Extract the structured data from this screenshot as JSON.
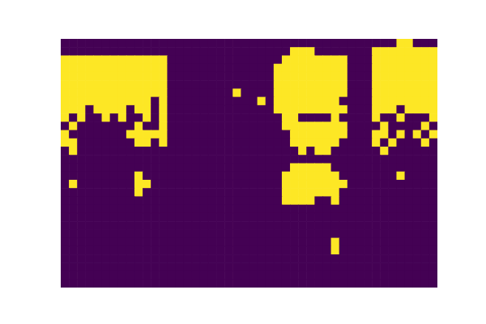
{
  "chart_data": {
    "type": "heatmap",
    "color": "viridis",
    "tick_labels": false,
    "cells": [
      [
        0,
        0,
        0,
        0,
        0,
        0,
        0,
        0,
        0,
        0,
        0,
        0,
        0,
        0,
        0,
        0,
        0,
        0,
        0,
        0,
        0,
        0,
        0,
        0,
        0,
        0,
        0,
        0,
        0,
        0,
        0,
        0,
        0,
        0,
        0,
        0,
        0,
        0,
        0,
        0,
        0,
        1,
        1,
        0,
        0,
        0
      ],
      [
        0,
        0,
        0,
        0,
        0,
        0,
        0,
        0,
        0,
        0,
        0,
        0,
        0,
        0,
        0,
        0,
        0,
        0,
        0,
        0,
        0,
        0,
        0,
        0,
        0,
        0,
        0,
        0,
        1,
        1,
        1,
        0,
        0,
        0,
        0,
        0,
        0,
        0,
        1,
        1,
        1,
        1,
        1,
        1,
        1,
        1
      ],
      [
        1,
        1,
        1,
        1,
        1,
        1,
        1,
        1,
        1,
        1,
        1,
        1,
        1,
        0,
        0,
        0,
        0,
        0,
        0,
        0,
        0,
        0,
        0,
        0,
        0,
        0,
        0,
        1,
        1,
        1,
        1,
        1,
        1,
        1,
        1,
        0,
        0,
        0,
        1,
        1,
        1,
        1,
        1,
        1,
        1,
        1
      ],
      [
        1,
        1,
        1,
        1,
        1,
        1,
        1,
        1,
        1,
        1,
        1,
        1,
        1,
        0,
        0,
        0,
        0,
        0,
        0,
        0,
        0,
        0,
        0,
        0,
        0,
        0,
        1,
        1,
        1,
        1,
        1,
        1,
        1,
        1,
        1,
        0,
        0,
        0,
        1,
        1,
        1,
        1,
        1,
        1,
        1,
        1
      ],
      [
        1,
        1,
        1,
        1,
        1,
        1,
        1,
        1,
        1,
        1,
        1,
        1,
        1,
        0,
        0,
        0,
        0,
        0,
        0,
        0,
        0,
        0,
        0,
        0,
        0,
        0,
        1,
        1,
        1,
        1,
        1,
        1,
        1,
        1,
        1,
        0,
        0,
        0,
        1,
        1,
        1,
        1,
        1,
        1,
        1,
        1
      ],
      [
        1,
        1,
        1,
        1,
        1,
        1,
        1,
        1,
        1,
        1,
        1,
        1,
        1,
        0,
        0,
        0,
        0,
        0,
        0,
        0,
        0,
        0,
        0,
        0,
        0,
        0,
        1,
        1,
        1,
        1,
        1,
        1,
        1,
        1,
        1,
        0,
        0,
        0,
        1,
        1,
        1,
        1,
        1,
        1,
        1,
        1
      ],
      [
        1,
        1,
        1,
        1,
        1,
        1,
        1,
        1,
        1,
        1,
        1,
        1,
        1,
        0,
        0,
        0,
        0,
        0,
        0,
        0,
        0,
        1,
        0,
        0,
        0,
        0,
        1,
        1,
        1,
        1,
        1,
        1,
        1,
        1,
        1,
        0,
        0,
        0,
        1,
        1,
        1,
        1,
        1,
        1,
        1,
        1
      ],
      [
        1,
        1,
        1,
        1,
        1,
        1,
        1,
        1,
        1,
        1,
        1,
        0,
        1,
        0,
        0,
        0,
        0,
        0,
        0,
        0,
        0,
        0,
        0,
        0,
        1,
        0,
        1,
        1,
        1,
        1,
        1,
        1,
        1,
        1,
        0,
        0,
        0,
        0,
        1,
        1,
        1,
        1,
        1,
        1,
        1,
        1
      ],
      [
        1,
        1,
        1,
        0,
        1,
        1,
        1,
        1,
        0,
        1,
        1,
        0,
        1,
        0,
        0,
        0,
        0,
        0,
        0,
        0,
        0,
        0,
        0,
        0,
        0,
        0,
        1,
        1,
        1,
        1,
        1,
        1,
        1,
        1,
        1,
        0,
        0,
        0,
        1,
        1,
        1,
        0,
        1,
        1,
        1,
        1
      ],
      [
        1,
        0,
        1,
        0,
        0,
        1,
        0,
        1,
        0,
        0,
        1,
        0,
        1,
        0,
        0,
        0,
        0,
        0,
        0,
        0,
        0,
        0,
        0,
        0,
        0,
        0,
        0,
        1,
        1,
        0,
        0,
        0,
        0,
        1,
        0,
        0,
        0,
        0,
        1,
        0,
        0,
        1,
        0,
        0,
        0,
        1
      ],
      [
        0,
        1,
        0,
        0,
        0,
        0,
        0,
        0,
        0,
        1,
        0,
        0,
        1,
        0,
        0,
        0,
        0,
        0,
        0,
        0,
        0,
        0,
        0,
        0,
        0,
        0,
        0,
        1,
        1,
        1,
        1,
        1,
        1,
        1,
        1,
        0,
        0,
        0,
        0,
        1,
        0,
        0,
        0,
        0,
        1,
        0
      ],
      [
        1,
        0,
        0,
        0,
        0,
        0,
        0,
        0,
        1,
        1,
        1,
        1,
        1,
        0,
        0,
        0,
        0,
        0,
        0,
        0,
        0,
        0,
        0,
        0,
        0,
        0,
        0,
        0,
        1,
        1,
        1,
        1,
        1,
        1,
        1,
        0,
        0,
        0,
        1,
        1,
        0,
        1,
        0,
        1,
        0,
        1
      ],
      [
        1,
        1,
        0,
        0,
        0,
        0,
        0,
        0,
        0,
        1,
        1,
        0,
        1,
        0,
        0,
        0,
        0,
        0,
        0,
        0,
        0,
        0,
        0,
        0,
        0,
        0,
        0,
        0,
        1,
        1,
        1,
        1,
        1,
        1,
        0,
        0,
        0,
        0,
        1,
        0,
        1,
        0,
        0,
        0,
        1,
        0
      ],
      [
        0,
        1,
        0,
        0,
        0,
        0,
        0,
        0,
        0,
        0,
        0,
        0,
        0,
        0,
        0,
        0,
        0,
        0,
        0,
        0,
        0,
        0,
        0,
        0,
        0,
        0,
        0,
        0,
        0,
        1,
        0,
        1,
        1,
        0,
        0,
        0,
        0,
        0,
        0,
        1,
        0,
        0,
        0,
        0,
        0,
        0
      ],
      [
        0,
        0,
        0,
        0,
        0,
        0,
        0,
        0,
        0,
        0,
        0,
        0,
        0,
        0,
        0,
        0,
        0,
        0,
        0,
        0,
        0,
        0,
        0,
        0,
        0,
        0,
        0,
        0,
        0,
        0,
        0,
        0,
        0,
        0,
        0,
        0,
        0,
        0,
        0,
        0,
        0,
        0,
        0,
        0,
        0,
        0
      ],
      [
        0,
        0,
        0,
        0,
        0,
        0,
        0,
        0,
        0,
        0,
        0,
        0,
        0,
        0,
        0,
        0,
        0,
        0,
        0,
        0,
        0,
        0,
        0,
        0,
        0,
        0,
        0,
        0,
        1,
        1,
        1,
        1,
        1,
        0,
        0,
        0,
        0,
        0,
        0,
        0,
        0,
        0,
        0,
        0,
        0,
        0
      ],
      [
        0,
        0,
        0,
        0,
        0,
        0,
        0,
        0,
        0,
        1,
        0,
        0,
        0,
        0,
        0,
        0,
        0,
        0,
        0,
        0,
        0,
        0,
        0,
        0,
        0,
        0,
        0,
        1,
        1,
        1,
        1,
        1,
        1,
        1,
        0,
        0,
        0,
        0,
        0,
        0,
        0,
        1,
        0,
        0,
        0,
        0
      ],
      [
        0,
        1,
        0,
        0,
        0,
        0,
        0,
        0,
        0,
        1,
        1,
        0,
        0,
        0,
        0,
        0,
        0,
        0,
        0,
        0,
        0,
        0,
        0,
        0,
        0,
        0,
        0,
        1,
        1,
        1,
        1,
        1,
        1,
        1,
        1,
        0,
        0,
        0,
        0,
        0,
        0,
        0,
        0,
        0,
        0,
        0
      ],
      [
        0,
        0,
        0,
        0,
        0,
        0,
        0,
        0,
        0,
        1,
        0,
        0,
        0,
        0,
        0,
        0,
        0,
        0,
        0,
        0,
        0,
        0,
        0,
        0,
        0,
        0,
        0,
        1,
        1,
        1,
        1,
        1,
        1,
        1,
        0,
        0,
        0,
        0,
        0,
        0,
        0,
        0,
        0,
        0,
        0,
        0
      ],
      [
        0,
        0,
        0,
        0,
        0,
        0,
        0,
        0,
        0,
        0,
        0,
        0,
        0,
        0,
        0,
        0,
        0,
        0,
        0,
        0,
        0,
        0,
        0,
        0,
        0,
        0,
        0,
        1,
        1,
        1,
        1,
        0,
        0,
        1,
        0,
        0,
        0,
        0,
        0,
        0,
        0,
        0,
        0,
        0,
        0,
        0
      ],
      [
        0,
        0,
        0,
        0,
        0,
        0,
        0,
        0,
        0,
        0,
        0,
        0,
        0,
        0,
        0,
        0,
        0,
        0,
        0,
        0,
        0,
        0,
        0,
        0,
        0,
        0,
        0,
        0,
        0,
        0,
        0,
        0,
        0,
        0,
        0,
        0,
        0,
        0,
        0,
        0,
        0,
        0,
        0,
        0,
        0,
        0
      ],
      [
        0,
        0,
        0,
        0,
        0,
        0,
        0,
        0,
        0,
        0,
        0,
        0,
        0,
        0,
        0,
        0,
        0,
        0,
        0,
        0,
        0,
        0,
        0,
        0,
        0,
        0,
        0,
        0,
        0,
        0,
        0,
        0,
        0,
        0,
        0,
        0,
        0,
        0,
        0,
        0,
        0,
        0,
        0,
        0,
        0,
        0
      ],
      [
        0,
        0,
        0,
        0,
        0,
        0,
        0,
        0,
        0,
        0,
        0,
        0,
        0,
        0,
        0,
        0,
        0,
        0,
        0,
        0,
        0,
        0,
        0,
        0,
        0,
        0,
        0,
        0,
        0,
        0,
        0,
        0,
        0,
        0,
        0,
        0,
        0,
        0,
        0,
        0,
        0,
        0,
        0,
        0,
        0,
        0
      ],
      [
        0,
        0,
        0,
        0,
        0,
        0,
        0,
        0,
        0,
        0,
        0,
        0,
        0,
        0,
        0,
        0,
        0,
        0,
        0,
        0,
        0,
        0,
        0,
        0,
        0,
        0,
        0,
        0,
        0,
        0,
        0,
        0,
        0,
        0,
        0,
        0,
        0,
        0,
        0,
        0,
        0,
        0,
        0,
        0,
        0,
        0
      ],
      [
        0,
        0,
        0,
        0,
        0,
        0,
        0,
        0,
        0,
        0,
        0,
        0,
        0,
        0,
        0,
        0,
        0,
        0,
        0,
        0,
        0,
        0,
        0,
        0,
        0,
        0,
        0,
        0,
        0,
        0,
        0,
        0,
        0,
        1,
        0,
        0,
        0,
        0,
        0,
        0,
        0,
        0,
        0,
        0,
        0,
        0
      ],
      [
        0,
        0,
        0,
        0,
        0,
        0,
        0,
        0,
        0,
        0,
        0,
        0,
        0,
        0,
        0,
        0,
        0,
        0,
        0,
        0,
        0,
        0,
        0,
        0,
        0,
        0,
        0,
        0,
        0,
        0,
        0,
        0,
        0,
        1,
        0,
        0,
        0,
        0,
        0,
        0,
        0,
        0,
        0,
        0,
        0,
        0
      ],
      [
        0,
        0,
        0,
        0,
        0,
        0,
        0,
        0,
        0,
        0,
        0,
        0,
        0,
        0,
        0,
        0,
        0,
        0,
        0,
        0,
        0,
        0,
        0,
        0,
        0,
        0,
        0,
        0,
        0,
        0,
        0,
        0,
        0,
        0,
        0,
        0,
        0,
        0,
        0,
        0,
        0,
        0,
        0,
        0,
        0,
        0
      ],
      [
        0,
        0,
        0,
        0,
        0,
        0,
        0,
        0,
        0,
        0,
        0,
        0,
        0,
        0,
        0,
        0,
        0,
        0,
        0,
        0,
        0,
        0,
        0,
        0,
        0,
        0,
        0,
        0,
        0,
        0,
        0,
        0,
        0,
        0,
        0,
        0,
        0,
        0,
        0,
        0,
        0,
        0,
        0,
        0,
        0,
        0
      ],
      [
        0,
        0,
        0,
        0,
        0,
        0,
        0,
        0,
        0,
        0,
        0,
        0,
        0,
        0,
        0,
        0,
        0,
        0,
        0,
        0,
        0,
        0,
        0,
        0,
        0,
        0,
        0,
        0,
        0,
        0,
        0,
        0,
        0,
        0,
        0,
        0,
        0,
        0,
        0,
        0,
        0,
        0,
        0,
        0,
        0,
        0
      ],
      [
        0,
        0,
        0,
        0,
        0,
        0,
        0,
        0,
        0,
        0,
        0,
        0,
        0,
        0,
        0,
        0,
        0,
        0,
        0,
        0,
        0,
        0,
        0,
        0,
        0,
        0,
        0,
        0,
        0,
        0,
        0,
        0,
        0,
        0,
        0,
        0,
        0,
        0,
        0,
        0,
        0,
        0,
        0,
        0,
        0,
        0
      ]
    ]
  }
}
